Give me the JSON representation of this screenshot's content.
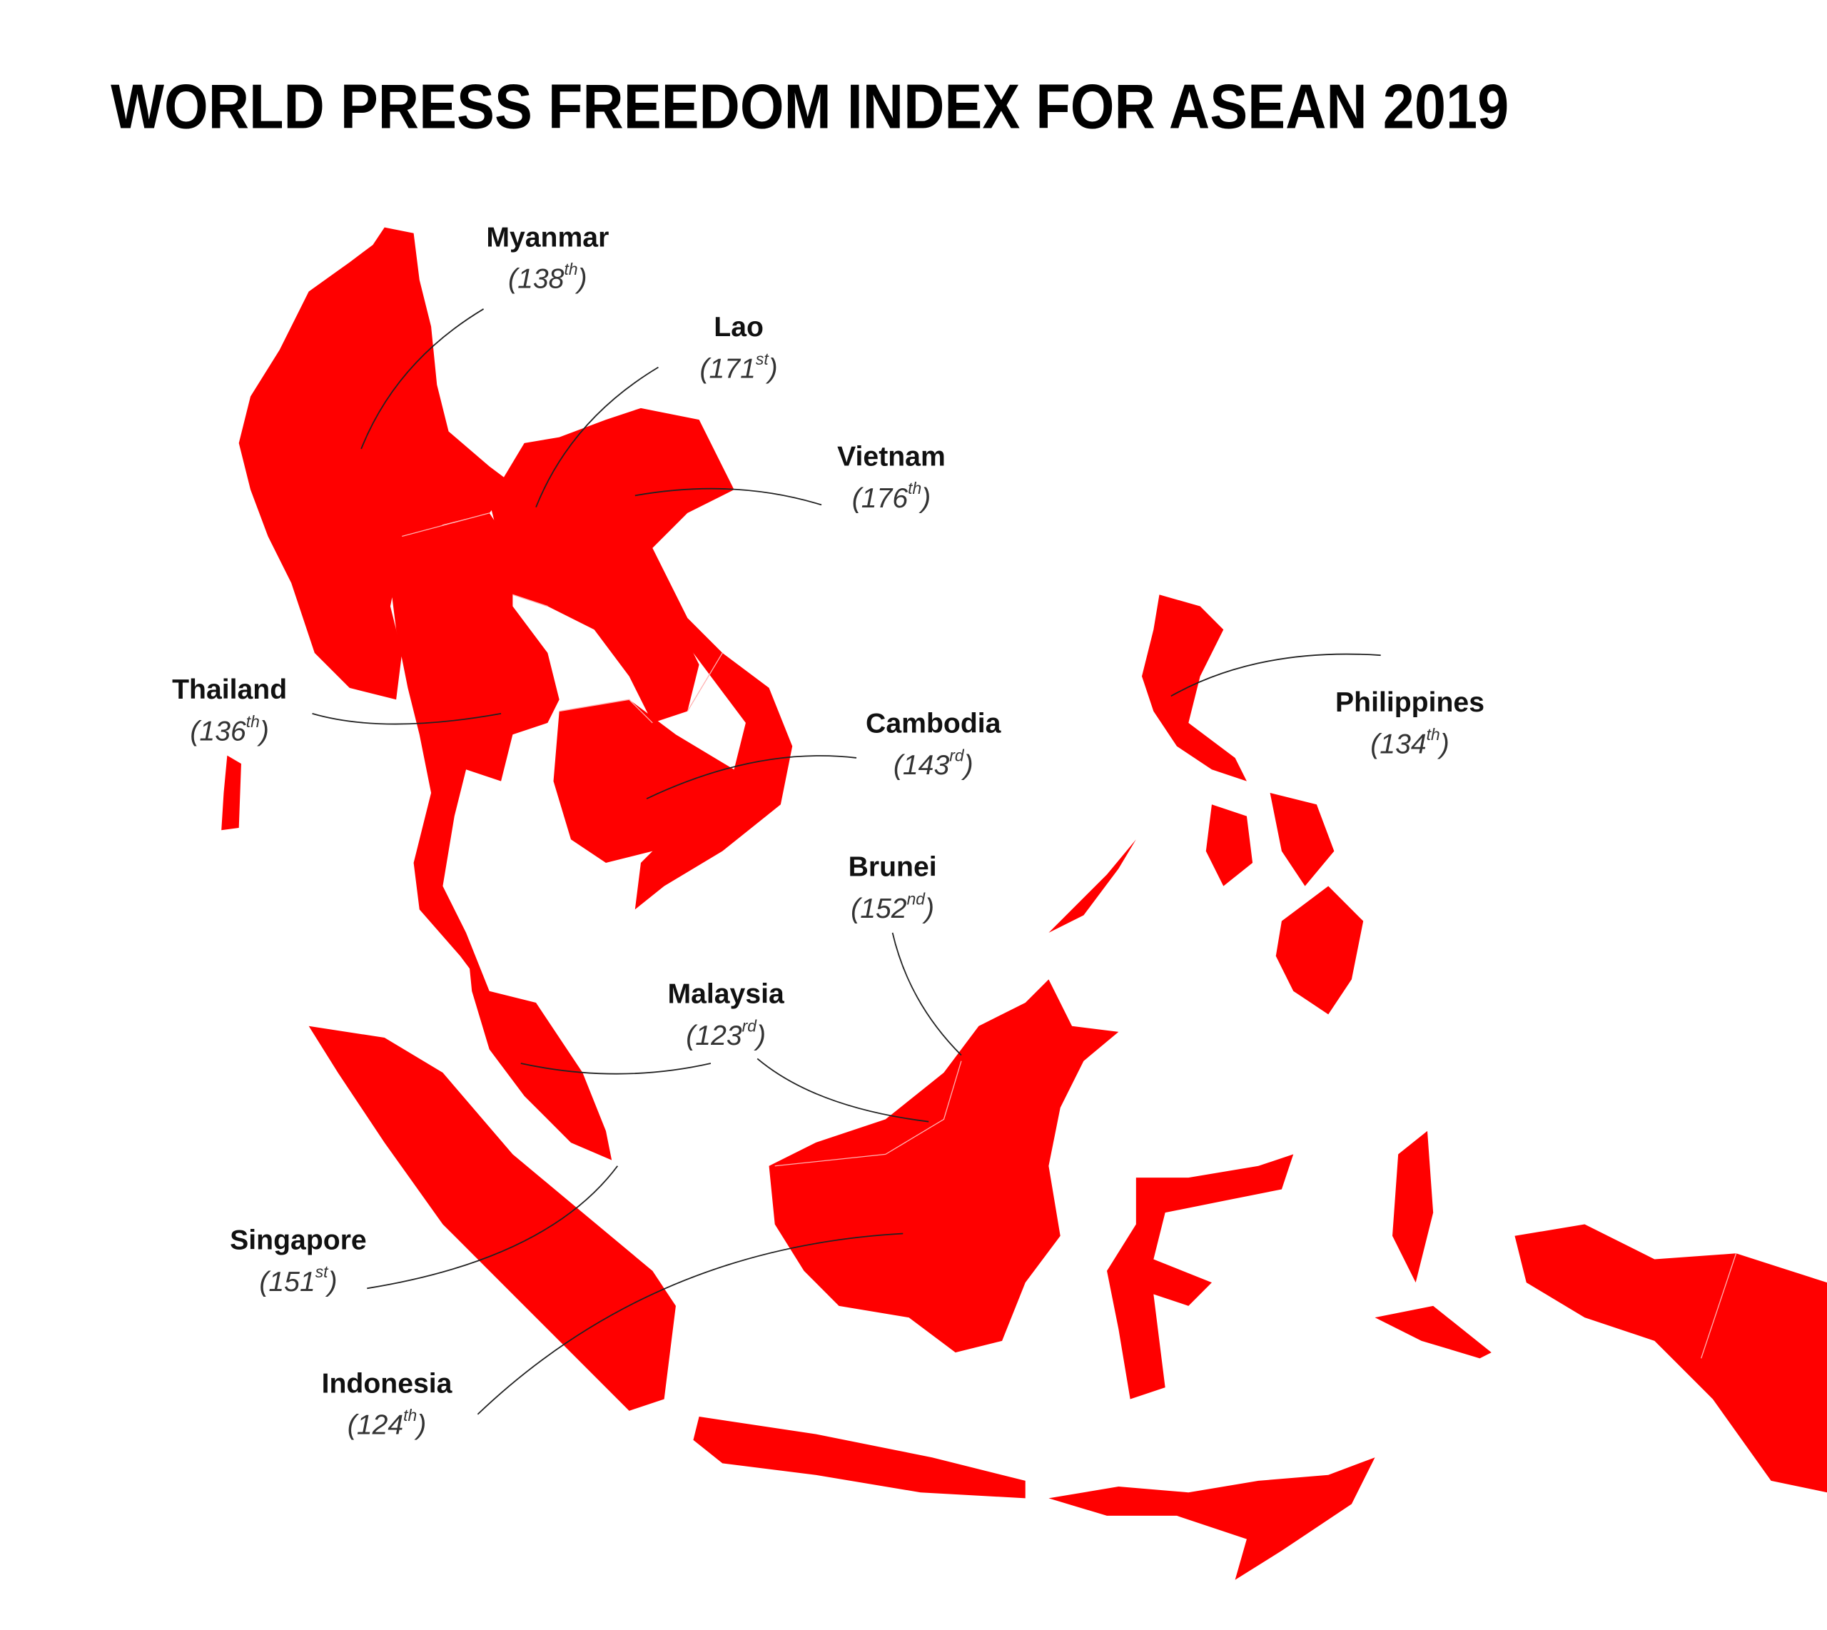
{
  "title": "WORLD PRESS FREEDOM INDEX FOR ASEAN 2019",
  "paren_open": "(",
  "paren_close": ")",
  "countries": [
    {
      "name": "Myanmar",
      "rank": 138,
      "suffix": "th"
    },
    {
      "name": "Lao",
      "rank": 171,
      "suffix": "st"
    },
    {
      "name": "Vietnam",
      "rank": 176,
      "suffix": "th"
    },
    {
      "name": "Thailand",
      "rank": 136,
      "suffix": "th"
    },
    {
      "name": "Cambodia",
      "rank": 143,
      "suffix": "rd"
    },
    {
      "name": "Philippines",
      "rank": 134,
      "suffix": "th"
    },
    {
      "name": "Brunei",
      "rank": 152,
      "suffix": "nd"
    },
    {
      "name": "Malaysia",
      "rank": 123,
      "suffix": "rd"
    },
    {
      "name": "Singapore",
      "rank": 151,
      "suffix": "st"
    },
    {
      "name": "Indonesia",
      "rank": 124,
      "suffix": "th"
    }
  ]
}
